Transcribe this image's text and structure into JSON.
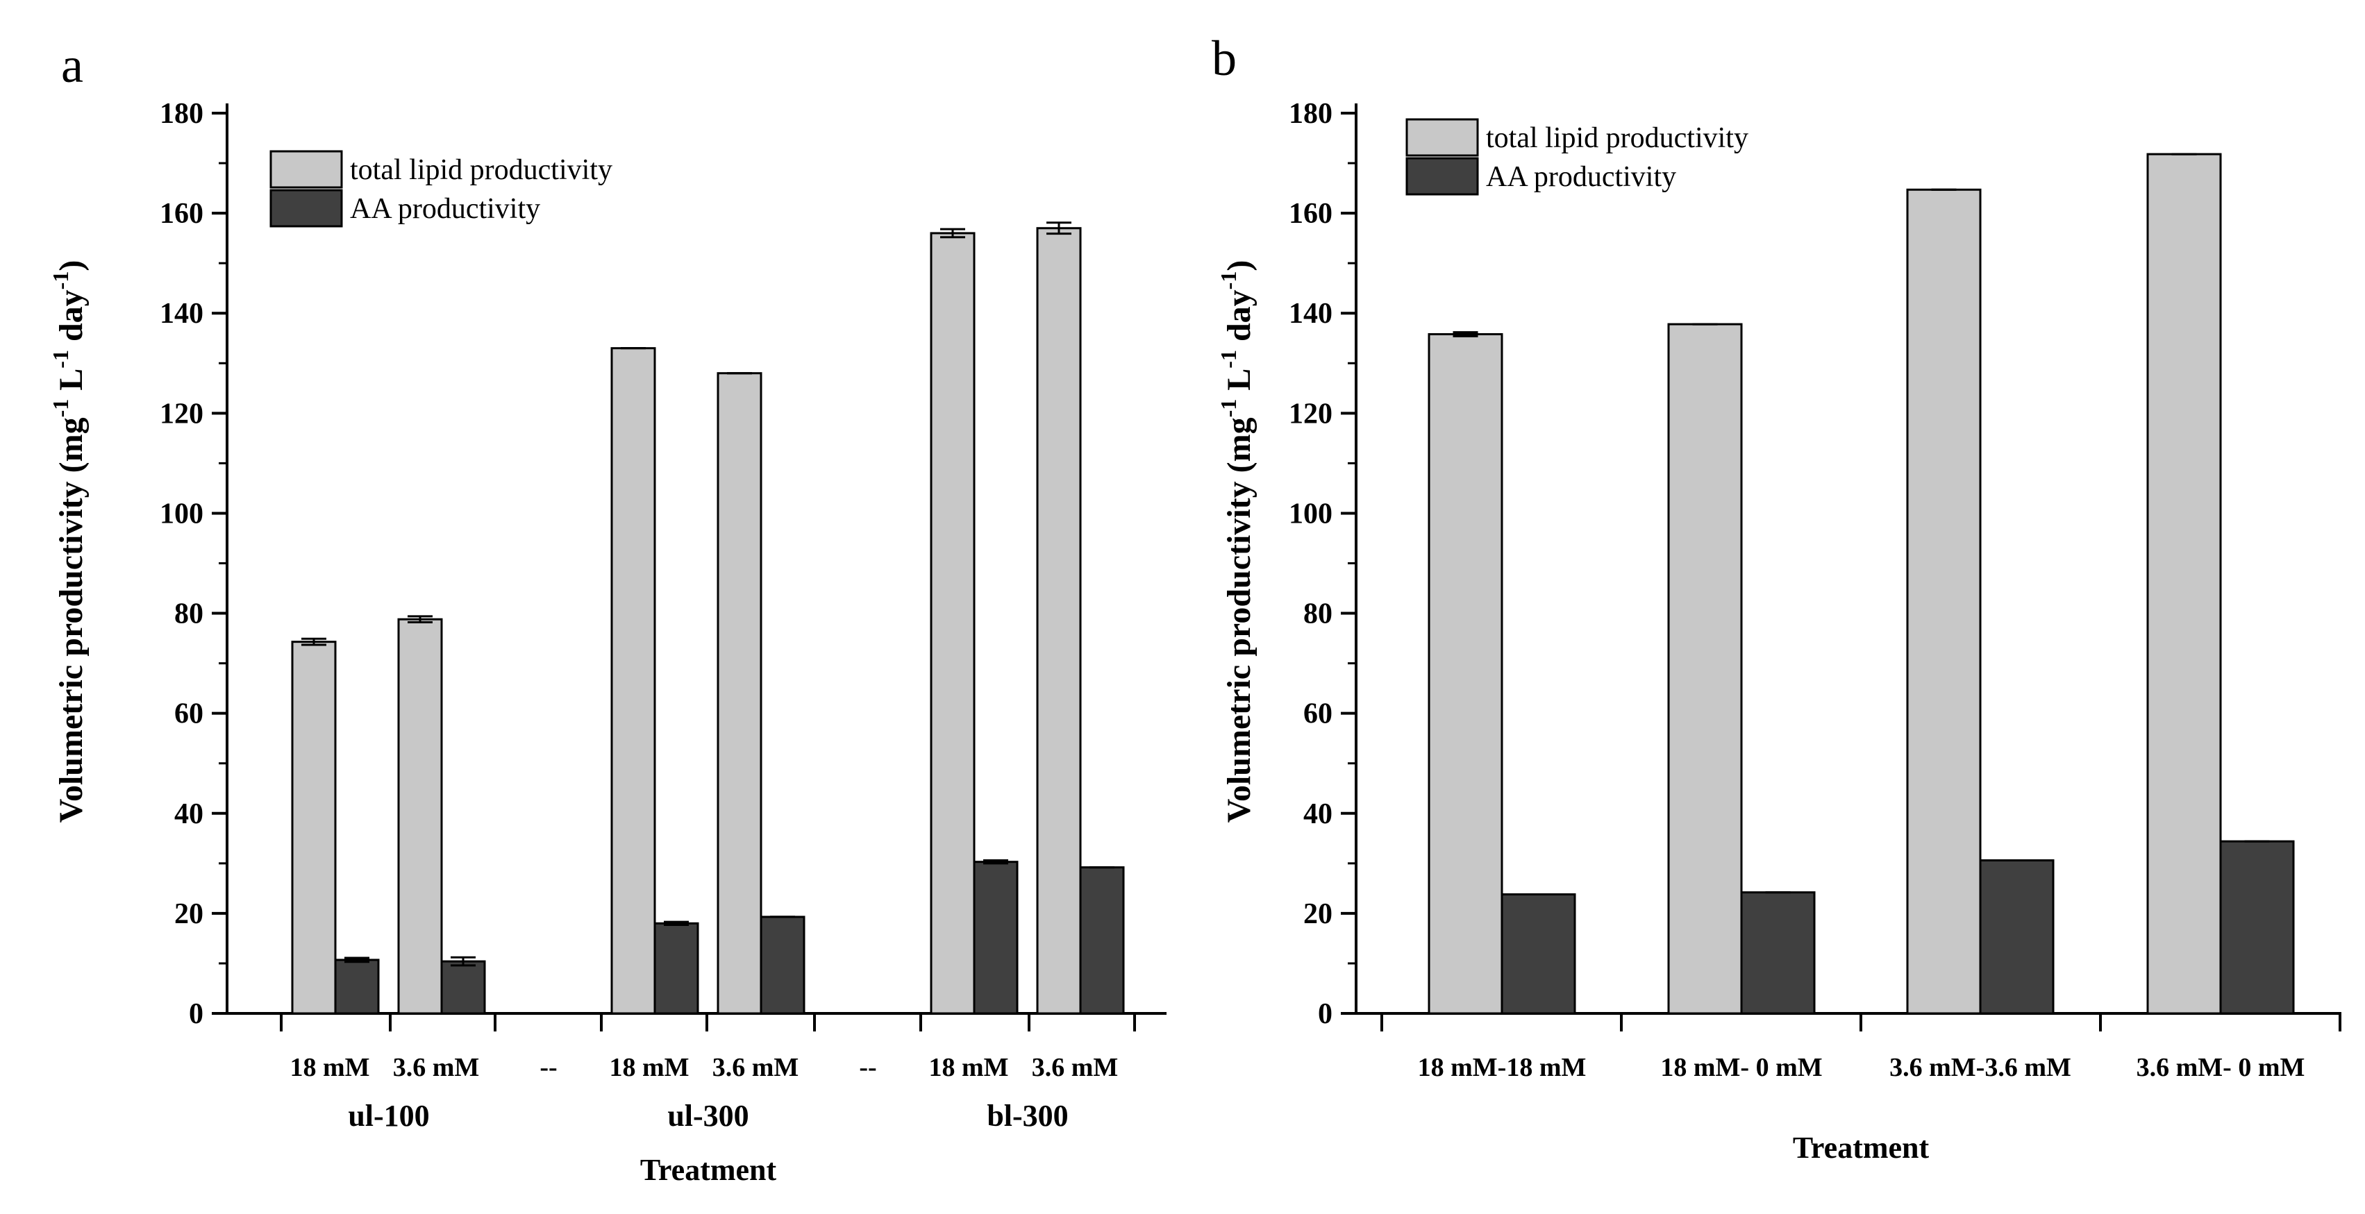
{
  "panel_a_label": "a",
  "panel_b_label": "b",
  "chart_data": [
    {
      "type": "bar",
      "panel": "a",
      "ylabel": "Volumetric productivity",
      "ylabel_unit": {
        "open": "(",
        "close": ")",
        "mg": "mg",
        "L": "L",
        "day": "day",
        "exp": "-1"
      },
      "xlabel": "Treatment",
      "ylim": [
        0,
        180
      ],
      "yticks": [
        0,
        20,
        40,
        60,
        80,
        100,
        120,
        140,
        160,
        180
      ],
      "legend": [
        "total lipid productivity",
        "AA productivity"
      ],
      "legend_position": "top-left",
      "groups": [
        {
          "label": "ul-100",
          "categories": [
            "18 mM",
            "3.6 mM"
          ]
        },
        {
          "label": "ul-300",
          "categories": [
            "18 mM",
            "3.6 mM"
          ]
        },
        {
          "label": "bl-300",
          "categories": [
            "18 mM",
            "3.6 mM"
          ]
        }
      ],
      "separator_label": "--",
      "series": [
        {
          "name": "total lipid productivity",
          "color": "#c8c8c8",
          "values": [
            74.3,
            78.8,
            133,
            128,
            156,
            157
          ],
          "errors": [
            0.6,
            0.6,
            0,
            0,
            0.8,
            1.1
          ]
        },
        {
          "name": "AA productivity",
          "color": "#404040",
          "values": [
            10.7,
            10.4,
            18,
            19.3,
            30.3,
            29.2
          ],
          "errors": [
            0.4,
            0.8,
            0.3,
            0,
            0.3,
            0
          ]
        }
      ]
    },
    {
      "type": "bar",
      "panel": "b",
      "ylabel": "Volumetric productivity",
      "ylabel_unit": {
        "open": "(",
        "close": ")",
        "mg": "mg",
        "L": "L",
        "day": "day",
        "exp": "-1"
      },
      "xlabel": "Treatment",
      "ylim": [
        0,
        180
      ],
      "yticks": [
        0,
        20,
        40,
        60,
        80,
        100,
        120,
        140,
        160,
        180
      ],
      "legend": [
        "total lipid productivity",
        "AA productivity"
      ],
      "legend_position": "top-left",
      "categories": [
        "18 mM-18 mM",
        "18 mM- 0 mM",
        "3.6 mM-3.6 mM",
        "3.6 mM- 0 mM"
      ],
      "series": [
        {
          "name": "total lipid productivity",
          "color": "#c8c8c8",
          "values": [
            135.8,
            137.8,
            164.7,
            171.8
          ],
          "errors": [
            0.4,
            0,
            0,
            0
          ]
        },
        {
          "name": "AA productivity",
          "color": "#404040",
          "values": [
            23.8,
            24.2,
            30.6,
            34.4
          ],
          "errors": [
            0,
            0,
            0,
            0
          ]
        }
      ]
    }
  ]
}
